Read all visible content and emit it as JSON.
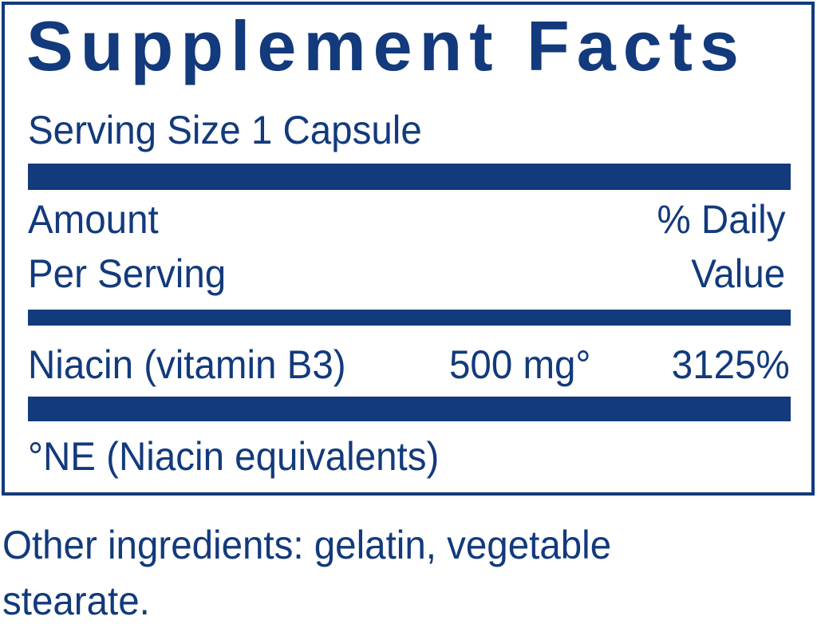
{
  "title": "Supplement Facts",
  "serving_size": "Serving Size 1 Capsule",
  "header": {
    "amount_line1": "Amount",
    "amount_line2": "Per Serving",
    "dv_line1": "% Daily",
    "dv_line2": "Value"
  },
  "nutrients": [
    {
      "name": "Niacin (vitamin B3)",
      "amount": "500 mg°",
      "daily_value": "3125%"
    }
  ],
  "footnote": "°NE (Niacin equivalents)",
  "other_ingredients_line1": "Other ingredients: gelatin, vegetable",
  "other_ingredients_line2": "stearate.",
  "colors": {
    "ink": "#123a7c"
  }
}
